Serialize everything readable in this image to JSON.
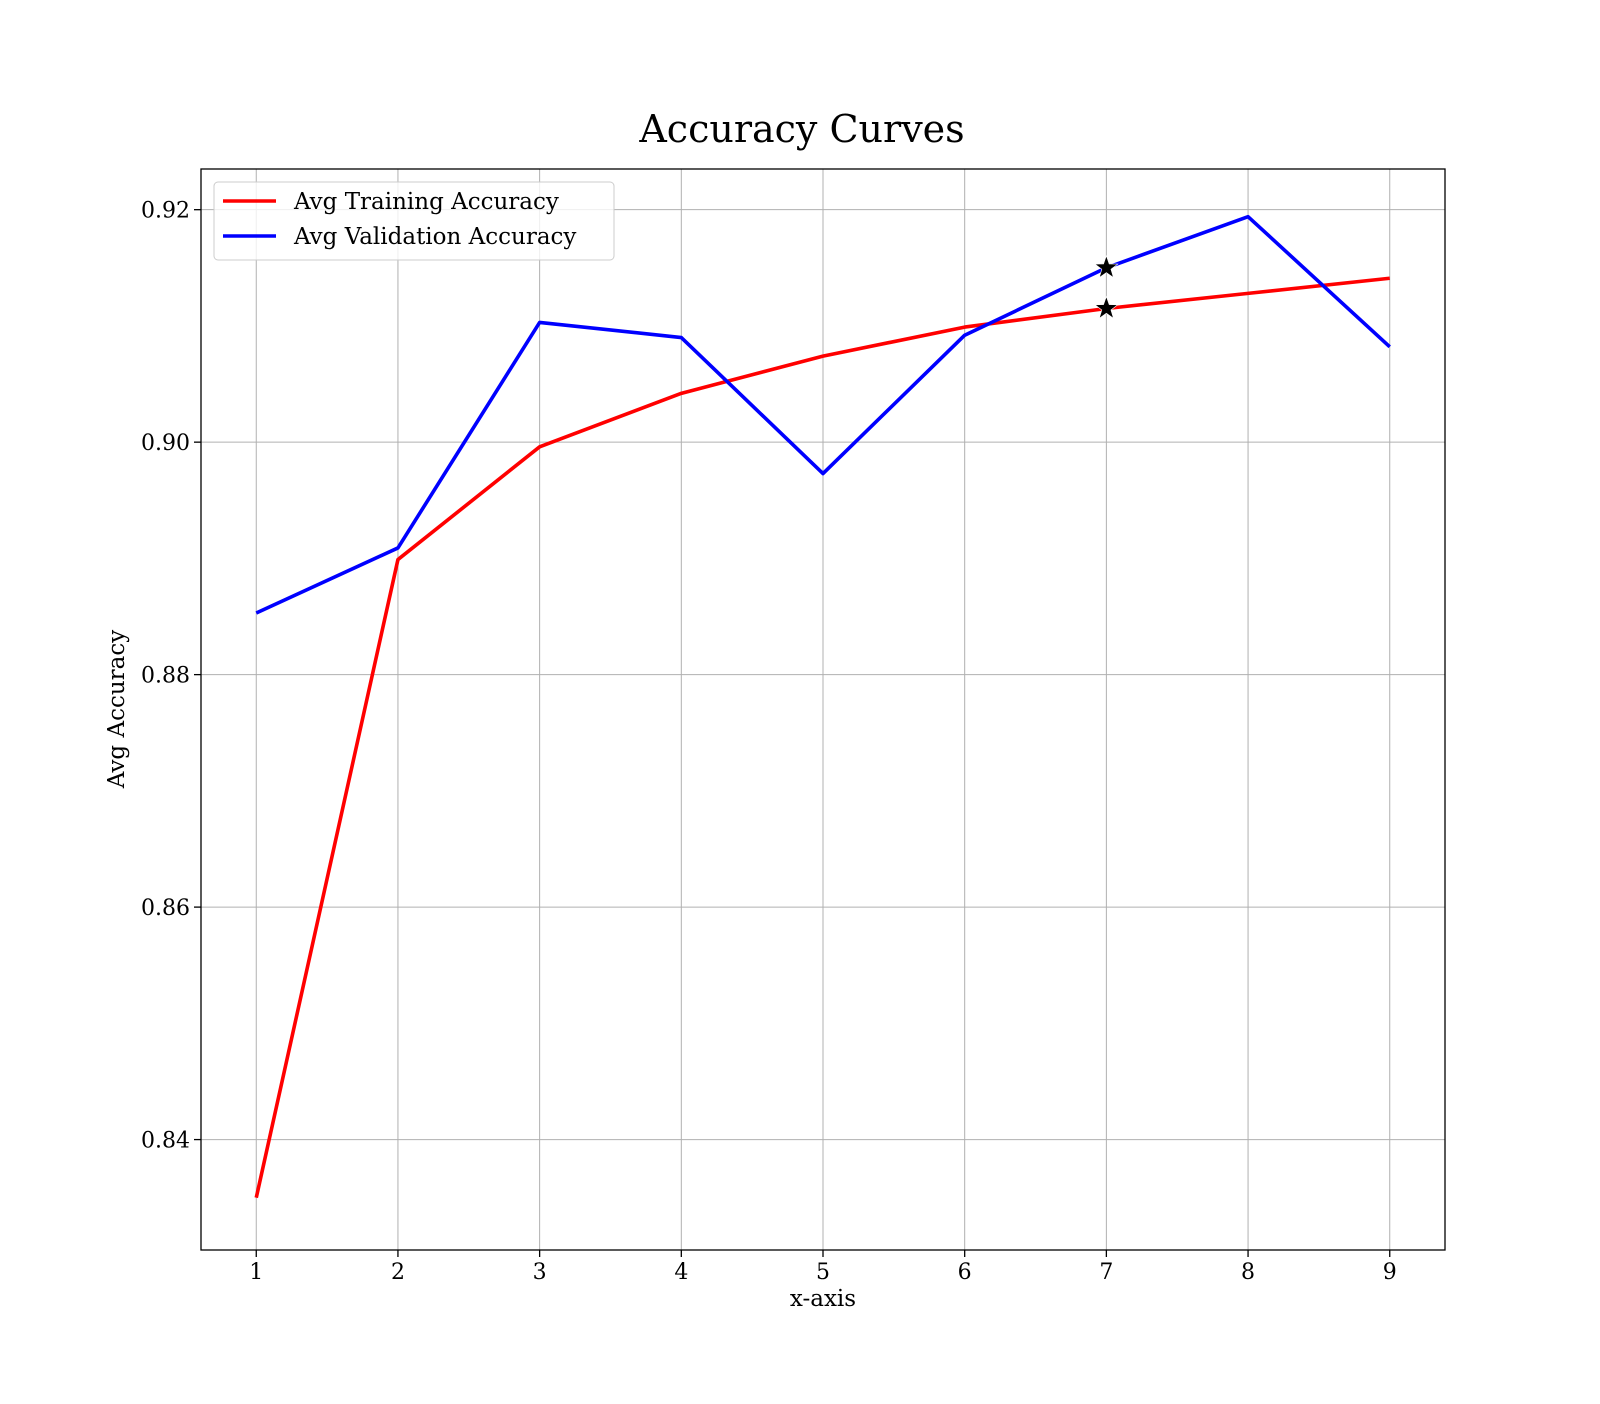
{
  "chart_data": {
    "type": "line",
    "title": "Accuracy Curves",
    "xlabel": "x-axis",
    "ylabel": "Avg Accuracy",
    "x": [
      1,
      2,
      3,
      4,
      5,
      6,
      7,
      8,
      9
    ],
    "xticks": [
      "1",
      "2",
      "3",
      "4",
      "5",
      "6",
      "7",
      "8",
      "9"
    ],
    "yticks": [
      "0.84",
      "0.86",
      "0.88",
      "0.90",
      "0.92"
    ],
    "xlim": [
      0.61,
      9.39
    ],
    "ylim": [
      0.8305,
      0.9235
    ],
    "grid": true,
    "legend_position": "upper-left",
    "series": [
      {
        "name": "Avg Training Accuracy",
        "color": "#ff0000",
        "values": [
          0.835,
          0.8899,
          0.8996,
          0.9042,
          0.9074,
          0.9099,
          0.9115,
          0.9128,
          0.9141
        ]
      },
      {
        "name": "Avg Validation Accuracy",
        "color": "#0000ff",
        "values": [
          0.8853,
          0.8909,
          0.9103,
          0.909,
          0.8973,
          0.9092,
          0.915,
          0.9194,
          0.9082
        ]
      }
    ],
    "markers": [
      {
        "series": "Avg Training Accuracy",
        "x": 7,
        "y": 0.9115,
        "shape": "star",
        "color": "#000000"
      },
      {
        "series": "Avg Validation Accuracy",
        "x": 7,
        "y": 0.915,
        "shape": "star",
        "color": "#000000"
      }
    ]
  }
}
